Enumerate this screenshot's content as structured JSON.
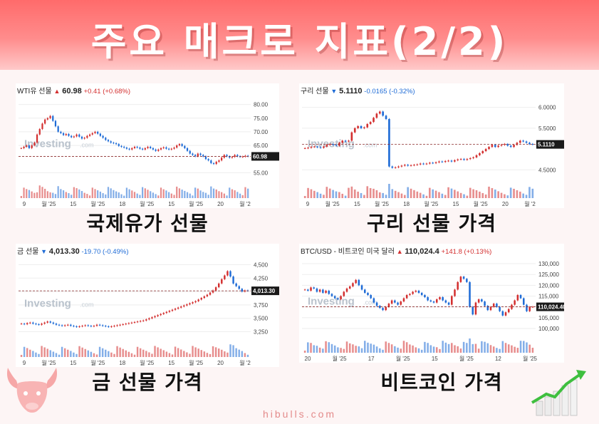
{
  "title": "주요 매크로 지표(2/2)",
  "footer": "hibulls.com",
  "colors": {
    "up": "#d32f2f",
    "down": "#1e6bd6",
    "banner": "#ff6b6b",
    "accent_green": "#3fbf3f"
  },
  "panels": [
    {
      "id": "wti",
      "caption": "국제유가 선물",
      "header": {
        "name": "WTI유 선물",
        "direction": "up",
        "price": "60.98",
        "change": "+0.41 (+0.68%)"
      },
      "last_label": "60.98",
      "y_ticks": [
        "80.00",
        "75.00",
        "70.00",
        "65.00",
        "55.00"
      ],
      "x_ticks": [
        "9",
        "월 '25",
        "15",
        "월 '25",
        "18",
        "월 '25",
        "15",
        "월 '25",
        "20",
        "월 '2"
      ],
      "watermark": "Investing",
      "watermark_suffix": ".com",
      "chart_data": {
        "type": "candlestick",
        "last_value": 60.98,
        "ylim": [
          53,
          82
        ],
        "y_ticks": [
          80,
          75,
          70,
          65,
          55
        ],
        "closes": [
          64,
          64.5,
          65,
          64,
          65,
          66,
          69,
          71,
          73,
          74.5,
          75,
          75.8,
          74,
          72,
          70,
          69.5,
          68.8,
          69.2,
          68.5,
          68,
          68.3,
          69,
          68.2,
          67.5,
          67.8,
          68.5,
          69,
          69.5,
          70,
          69.3,
          68.5,
          67.8,
          67,
          66.5,
          66,
          65.8,
          65.5,
          64.8,
          64.5,
          64.2,
          63.8,
          63.5,
          64,
          64.5,
          64.2,
          63.8,
          63.5,
          64,
          64.5,
          64,
          63.5,
          63,
          63.5,
          64,
          64.3,
          63.8,
          63.5,
          63.8,
          64.2,
          65,
          65.5,
          64.8,
          64,
          63,
          62,
          61.5,
          61,
          62,
          61.5,
          61,
          60,
          59.5,
          58.5,
          58.2,
          59,
          59.5,
          60.5,
          61.5,
          61,
          60.5,
          60.8,
          61.5,
          61,
          60.8,
          60.9,
          61.2,
          60.98
        ]
      }
    },
    {
      "id": "copper",
      "caption": "구리 선물 가격",
      "header": {
        "name": "구리 선물",
        "direction": "down",
        "price": "5.1110",
        "change": "-0.0165 (-0.32%)"
      },
      "last_label": "5.1110",
      "y_ticks": [
        "6.0000",
        "5.5000",
        "4.5000"
      ],
      "x_ticks": [
        "9",
        "월 '25",
        "15",
        "월 '25",
        "18",
        "월 '25",
        "15",
        "월 '25",
        "20",
        "월 '2"
      ],
      "watermark": "Investing",
      "watermark_suffix": ".com",
      "chart_data": {
        "type": "candlestick",
        "last_value": 5.111,
        "ylim": [
          4.3,
          6.2
        ],
        "y_ticks": [
          6.0,
          5.5,
          4.5
        ],
        "closes": [
          5.02,
          5.03,
          5.05,
          5.06,
          5.04,
          5.03,
          5.06,
          5.1,
          5.12,
          5.1,
          5.08,
          5.15,
          5.2,
          5.18,
          5.2,
          5.4,
          5.5,
          5.55,
          5.5,
          5.52,
          5.6,
          5.65,
          5.75,
          5.85,
          5.9,
          5.8,
          5.72,
          4.58,
          4.55,
          4.56,
          4.58,
          4.6,
          4.62,
          4.6,
          4.61,
          4.62,
          4.63,
          4.65,
          4.64,
          4.65,
          4.67,
          4.66,
          4.68,
          4.7,
          4.69,
          4.71,
          4.72,
          4.7,
          4.73,
          4.75,
          4.76,
          4.74,
          4.76,
          4.78,
          4.8,
          4.85,
          4.9,
          4.95,
          5.0,
          5.05,
          5.1,
          5.05,
          5.08,
          5.1,
          5.12,
          5.08,
          5.05,
          5.1,
          5.15,
          5.2,
          5.18,
          5.15,
          5.12,
          5.111
        ]
      }
    },
    {
      "id": "gold",
      "caption": "금 선물 가격",
      "header": {
        "name": "금 선물",
        "direction": "down",
        "price": "4,013.30",
        "change": "-19.70 (-0.49%)"
      },
      "last_label": "4,013.30",
      "y_ticks": [
        "4,500",
        "4,250",
        "4,000",
        "3,750",
        "3,500",
        "3,250"
      ],
      "x_ticks": [
        "9",
        "월 '25",
        "15",
        "월 '25",
        "18",
        "월 '25",
        "15",
        "월 '25",
        "20",
        "월 '2"
      ],
      "watermark": "Investing",
      "watermark_suffix": ".com",
      "chart_data": {
        "type": "candlestick",
        "last_value": 4013.3,
        "ylim": [
          3150,
          4600
        ],
        "y_ticks": [
          4500,
          4250,
          4000,
          3750,
          3500,
          3250
        ],
        "closes": [
          3400,
          3390,
          3410,
          3420,
          3400,
          3390,
          3380,
          3400,
          3420,
          3440,
          3420,
          3400,
          3380,
          3370,
          3360,
          3370,
          3380,
          3360,
          3350,
          3340,
          3350,
          3360,
          3370,
          3360,
          3350,
          3360,
          3380,
          3370,
          3360,
          3350,
          3340,
          3350,
          3360,
          3370,
          3380,
          3390,
          3400,
          3410,
          3420,
          3430,
          3440,
          3450,
          3460,
          3480,
          3500,
          3520,
          3540,
          3560,
          3580,
          3600,
          3620,
          3640,
          3660,
          3680,
          3700,
          3720,
          3740,
          3760,
          3780,
          3800,
          3820,
          3850,
          3880,
          3910,
          3940,
          3980,
          4020,
          4080,
          4150,
          4230,
          4300,
          4380,
          4280,
          4150,
          4100,
          4050,
          4000,
          4020,
          4013.3
        ]
      }
    },
    {
      "id": "btc",
      "caption": "비트코인 가격",
      "header": {
        "name": "BTC/USD - 비트코인 미국 달러",
        "direction": "up",
        "price": "110,024.4",
        "change": "+141.8 (+0.13%)"
      },
      "last_label": "110,024.40",
      "y_ticks": [
        "130,000",
        "125,000",
        "120,000",
        "115,000",
        "110,000",
        "105,000",
        "100,000"
      ],
      "x_ticks": [
        "20",
        "월 '25",
        "17",
        "월 '25",
        "15",
        "월 '25",
        "12",
        "월 '25"
      ],
      "watermark": "Investing",
      "watermark_suffix": ".com",
      "chart_data": {
        "type": "candlestick",
        "last_value": 110024.4,
        "ylim": [
          98000,
          132000
        ],
        "y_ticks": [
          130000,
          125000,
          120000,
          115000,
          110000,
          105000,
          100000
        ],
        "closes": [
          118000,
          117500,
          119000,
          118500,
          117000,
          118000,
          116500,
          117500,
          116000,
          115000,
          114000,
          113500,
          115000,
          117000,
          118500,
          119500,
          121000,
          122500,
          120000,
          118000,
          116500,
          115500,
          114000,
          112000,
          110500,
          109500,
          108500,
          110000,
          111500,
          113000,
          112000,
          111000,
          112500,
          114000,
          115500,
          116000,
          117000,
          117500,
          116500,
          115500,
          114500,
          113000,
          112500,
          112000,
          113500,
          114500,
          113000,
          112000,
          111000,
          115000,
          118000,
          121500,
          124000,
          123000,
          121500,
          110000,
          106500,
          112000,
          113500,
          112500,
          110500,
          108500,
          110000,
          111500,
          110000,
          108000,
          106000,
          107500,
          109000,
          111000,
          113000,
          115500,
          114000,
          111000,
          108000,
          110000,
          110024.4
        ]
      }
    }
  ]
}
